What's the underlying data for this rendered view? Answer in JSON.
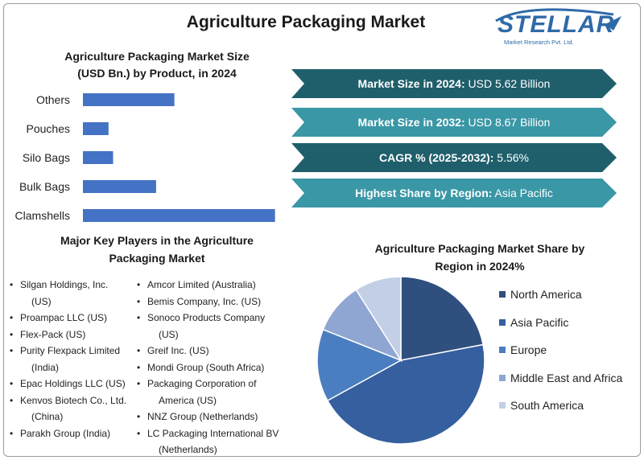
{
  "title": "Agriculture Packaging Market",
  "logo": {
    "name": "STELLAR",
    "tagline": "Market Research Pvt. Ltd."
  },
  "colors": {
    "bar": "#4472c4",
    "banner_dark": "#1f5f6b",
    "banner_light": "#3a97a6",
    "pie": [
      "#2f4f7f",
      "#355f9e",
      "#4a7ec0",
      "#8fa6d2",
      "#c3cfe6"
    ]
  },
  "bar_chart": {
    "title_line1": "Agriculture Packaging Market Size",
    "title_line2": "(USD Bn.) by Product, in 2024"
  },
  "banners": [
    {
      "label": "Market Size in 2024:",
      "value": "USD 5.62 Billion",
      "style": "dark"
    },
    {
      "label": "Market Size in 2032:",
      "value": "USD 8.67 Billion",
      "style": "light"
    },
    {
      "label": "CAGR % (2025-2032):",
      "value": "5.56%",
      "style": "dark"
    },
    {
      "label": "Highest Share by Region:",
      "value": "Asia Pacific",
      "style": "light"
    }
  ],
  "key_players": {
    "title_line1": "Major Key Players in the Agriculture",
    "title_line2": "Packaging Market",
    "col1": [
      {
        "l1": "Silgan Holdings, Inc.",
        "l2": "(US)"
      },
      {
        "l1": "Proampac LLC (US)",
        "l2": ""
      },
      {
        "l1": "Flex-Pack (US)",
        "l2": ""
      },
      {
        "l1": "Purity Flexpack Limited",
        "l2": "(India)"
      },
      {
        "l1": "Epac Holdings LLC (US)",
        "l2": ""
      },
      {
        "l1": "Kenvos Biotech Co., Ltd.",
        "l2": "(China)"
      },
      {
        "l1": "Parakh Group (India)",
        "l2": ""
      }
    ],
    "col2": [
      {
        "l1": "Amcor Limited (Australia)",
        "l2": ""
      },
      {
        "l1": "Bemis Company, Inc. (US)",
        "l2": ""
      },
      {
        "l1": "Sonoco Products Company",
        "l2": "(US)"
      },
      {
        "l1": "Greif Inc. (US)",
        "l2": ""
      },
      {
        "l1": "Mondi Group (South Africa)",
        "l2": ""
      },
      {
        "l1": "Packaging Corporation of",
        "l2": "America (US)"
      },
      {
        "l1": "NNZ Group (Netherlands)",
        "l2": ""
      },
      {
        "l1": "LC Packaging International BV",
        "l2": "(Netherlands)"
      }
    ]
  },
  "pie_chart": {
    "title_line1": "Agriculture Packaging Market Share by",
    "title_line2": "Region in 2024%"
  },
  "chart_data": [
    {
      "type": "bar",
      "orientation": "horizontal",
      "title": "Agriculture Packaging Market Size (USD Bn.) by Product, in 2024",
      "categories": [
        "Others",
        "Pouches",
        "Silo Bags",
        "Bulk Bags",
        "Clamshells"
      ],
      "values": [
        1.0,
        0.28,
        0.33,
        0.8,
        2.1
      ],
      "xlim": [
        0,
        2.2
      ],
      "grid": false,
      "legend": "none"
    },
    {
      "type": "pie",
      "title": "Agriculture Packaging Market Share by Region in 2024%",
      "labels": [
        "North America",
        "Asia Pacific",
        "Europe",
        "Middle East and Africa",
        "South America"
      ],
      "values": [
        22,
        45,
        14,
        10,
        9
      ],
      "legend": "right"
    }
  ]
}
